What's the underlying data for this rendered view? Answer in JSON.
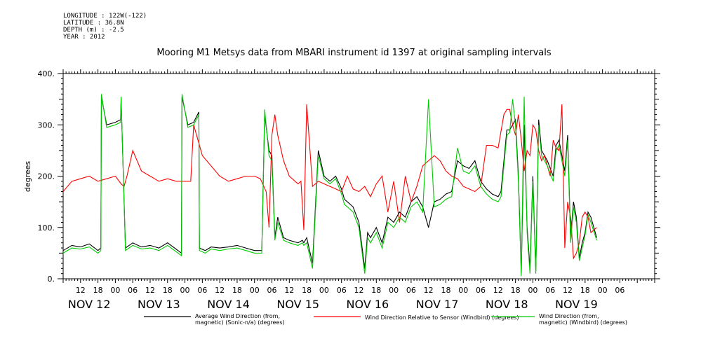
{
  "meta": {
    "longitude": "LONGITUDE : 122W(-122)",
    "latitude": "LATITUDE : 36.8N",
    "depth": "DEPTH (m) : -2.5",
    "year": "YEAR : 2012"
  },
  "chart_data": {
    "type": "line",
    "title": "Mooring M1 Metsys data from MBARI instrument id 1397 at original sampling intervals",
    "ylabel": "degrees",
    "xlabel": "",
    "ylim": [
      0,
      400
    ],
    "y_ticks": [
      0,
      100,
      200,
      300,
      400
    ],
    "y_tick_labels": [
      "0.",
      "100.",
      "200.",
      "300.",
      "400."
    ],
    "x_range_hours": [
      0,
      204
    ],
    "x_hour_ticks": [
      {
        "h": 6,
        "label": "12"
      },
      {
        "h": 12,
        "label": "18"
      },
      {
        "h": 18,
        "label": "00"
      },
      {
        "h": 24,
        "label": "06"
      },
      {
        "h": 30,
        "label": "12"
      },
      {
        "h": 36,
        "label": "18"
      },
      {
        "h": 42,
        "label": "00"
      },
      {
        "h": 48,
        "label": "06"
      },
      {
        "h": 54,
        "label": "12"
      },
      {
        "h": 60,
        "label": "18"
      },
      {
        "h": 66,
        "label": "00"
      },
      {
        "h": 72,
        "label": "06"
      },
      {
        "h": 78,
        "label": "12"
      },
      {
        "h": 84,
        "label": "18"
      },
      {
        "h": 90,
        "label": "00"
      },
      {
        "h": 96,
        "label": "06"
      },
      {
        "h": 102,
        "label": "12"
      },
      {
        "h": 108,
        "label": "18"
      },
      {
        "h": 114,
        "label": "00"
      },
      {
        "h": 120,
        "label": "06"
      },
      {
        "h": 126,
        "label": "12"
      },
      {
        "h": 132,
        "label": "18"
      },
      {
        "h": 138,
        "label": "00"
      },
      {
        "h": 144,
        "label": "06"
      },
      {
        "h": 150,
        "label": "12"
      },
      {
        "h": 156,
        "label": "18"
      },
      {
        "h": 162,
        "label": "00"
      },
      {
        "h": 168,
        "label": "06"
      },
      {
        "h": 174,
        "label": "12"
      },
      {
        "h": 180,
        "label": "18"
      },
      {
        "h": 186,
        "label": "00"
      },
      {
        "h": 192,
        "label": "06"
      }
    ],
    "x_day_labels": [
      {
        "h": 9,
        "label": "NOV 12"
      },
      {
        "h": 33,
        "label": "NOV 13"
      },
      {
        "h": 57,
        "label": "NOV 14"
      },
      {
        "h": 81,
        "label": "NOV 15"
      },
      {
        "h": 105,
        "label": "NOV 16"
      },
      {
        "h": 129,
        "label": "NOV 17"
      },
      {
        "h": 153,
        "label": "NOV 18"
      },
      {
        "h": 177,
        "label": "NOV 19"
      }
    ],
    "series": [
      {
        "name_line1": "Average Wind Direction (from,",
        "name_line2": "magnetic) (Sonic-n/a) (degrees)",
        "color": "#000000",
        "x": [
          0,
          3,
          6,
          9,
          12,
          13,
          13.2,
          15,
          18,
          19.8,
          20,
          21.5,
          24,
          27,
          30,
          33,
          36,
          40.8,
          41,
          43,
          45,
          46.8,
          47,
          49,
          51,
          54,
          57,
          60,
          63,
          66,
          68.5,
          69.5,
          71,
          72,
          73,
          74,
          76,
          78,
          81,
          82.5,
          83,
          84,
          86,
          88,
          90,
          92,
          94,
          96,
          97,
          98,
          100,
          102,
          104,
          105,
          106,
          108,
          110,
          112,
          114,
          116,
          118,
          120,
          122,
          124,
          126,
          128,
          130,
          132,
          134,
          136,
          138,
          140,
          142,
          144,
          146,
          148,
          150,
          151,
          153,
          154,
          155,
          156,
          157,
          158,
          159,
          160,
          161,
          162,
          163,
          164,
          165,
          166,
          167,
          168,
          169,
          170,
          171,
          172,
          173,
          174,
          175,
          176,
          177,
          178,
          179,
          180,
          181,
          182,
          184
        ],
        "y": [
          55,
          65,
          62,
          68,
          55,
          60,
          355,
          300,
          305,
          310,
          350,
          60,
          70,
          62,
          65,
          60,
          70,
          50,
          355,
          300,
          305,
          325,
          60,
          55,
          62,
          60,
          62,
          65,
          60,
          55,
          55,
          320,
          250,
          240,
          80,
          120,
          80,
          75,
          70,
          75,
          70,
          80,
          30,
          250,
          200,
          190,
          200,
          175,
          155,
          150,
          140,
          110,
          20,
          90,
          80,
          100,
          70,
          120,
          110,
          130,
          120,
          150,
          160,
          140,
          100,
          150,
          155,
          165,
          170,
          230,
          220,
          215,
          230,
          190,
          175,
          165,
          160,
          170,
          290,
          290,
          300,
          310,
          200,
          10,
          300,
          100,
          20,
          200,
          15,
          310,
          250,
          240,
          230,
          215,
          200,
          260,
          270,
          240,
          210,
          280,
          80,
          150,
          120,
          40,
          70,
          90,
          130,
          120,
          80
        ]
      },
      {
        "name_line1": "Wind Direction Relative to Sensor (Windbird) (degrees)",
        "name_line2": "",
        "color": "#ff0000",
        "x": [
          0,
          3,
          6,
          9,
          12,
          15,
          18,
          20,
          21,
          22,
          24,
          27,
          30,
          33,
          36,
          39,
          42,
          44,
          45,
          48,
          51,
          54,
          57,
          60,
          63,
          66,
          68,
          70,
          71,
          72,
          73,
          74,
          76,
          78,
          81,
          82,
          83,
          84,
          86,
          88,
          90,
          92,
          94,
          96,
          98,
          100,
          102,
          104,
          106,
          108,
          110,
          112,
          114,
          116,
          118,
          120,
          122,
          124,
          126,
          128,
          130,
          132,
          134,
          136,
          138,
          140,
          142,
          144,
          146,
          148,
          150,
          152,
          153,
          154,
          155,
          156,
          157,
          158,
          159,
          160,
          161,
          162,
          163,
          164,
          165,
          166,
          167,
          168,
          169,
          170,
          171,
          172,
          173,
          174,
          175,
          176,
          177,
          178,
          179,
          180,
          181,
          182,
          184
        ],
        "y": [
          170,
          190,
          195,
          200,
          190,
          195,
          200,
          185,
          180,
          200,
          250,
          210,
          200,
          190,
          195,
          190,
          190,
          190,
          300,
          240,
          220,
          200,
          190,
          195,
          200,
          200,
          195,
          170,
          100,
          280,
          320,
          280,
          230,
          200,
          185,
          190,
          95,
          340,
          180,
          190,
          185,
          180,
          175,
          170,
          200,
          175,
          170,
          180,
          160,
          185,
          200,
          130,
          190,
          110,
          200,
          150,
          180,
          220,
          230,
          240,
          230,
          210,
          200,
          195,
          180,
          175,
          170,
          180,
          260,
          260,
          255,
          320,
          330,
          330,
          300,
          280,
          320,
          270,
          210,
          250,
          240,
          300,
          290,
          250,
          230,
          240,
          220,
          200,
          270,
          255,
          250,
          340,
          60,
          150,
          120,
          40,
          50,
          70,
          120,
          130,
          120,
          90,
          100
        ]
      },
      {
        "name_line1": "Wind Direction (from,",
        "name_line2": "magnetic) (Windbird) (degrees)",
        "color": "#00cc00",
        "x": [
          0,
          3,
          6,
          9,
          12,
          13,
          13.2,
          15,
          18,
          19.8,
          20,
          21.5,
          24,
          27,
          30,
          33,
          36,
          40.8,
          41,
          43,
          45,
          46.8,
          47,
          49,
          51,
          54,
          57,
          60,
          63,
          66,
          68.5,
          69.5,
          71,
          72,
          73,
          74,
          76,
          78,
          81,
          82.5,
          83,
          84,
          86,
          88,
          90,
          92,
          94,
          96,
          97,
          98,
          100,
          102,
          104,
          105,
          106,
          108,
          110,
          112,
          114,
          116,
          118,
          120,
          122,
          124,
          126,
          128,
          130,
          132,
          134,
          136,
          138,
          140,
          142,
          144,
          146,
          148,
          150,
          151,
          153,
          154,
          155,
          156,
          157,
          158,
          159,
          160,
          161,
          162,
          163,
          164,
          165,
          166,
          167,
          168,
          169,
          170,
          171,
          172,
          173,
          174,
          175,
          176,
          177,
          178,
          179,
          180,
          181,
          182,
          184
        ],
        "y": [
          50,
          60,
          58,
          62,
          50,
          55,
          360,
          295,
          300,
          305,
          355,
          55,
          65,
          58,
          60,
          55,
          65,
          45,
          360,
          295,
          300,
          320,
          55,
          50,
          58,
          55,
          58,
          60,
          55,
          50,
          50,
          330,
          240,
          230,
          75,
          110,
          75,
          70,
          65,
          70,
          65,
          70,
          20,
          240,
          195,
          185,
          195,
          165,
          145,
          140,
          130,
          100,
          10,
          80,
          70,
          90,
          60,
          110,
          100,
          120,
          110,
          140,
          150,
          130,
          350,
          140,
          145,
          155,
          160,
          255,
          210,
          205,
          220,
          180,
          165,
          155,
          150,
          160,
          280,
          285,
          350,
          300,
          190,
          5,
          355,
          90,
          10,
          190,
          10,
          300,
          240,
          230,
          220,
          205,
          190,
          250,
          260,
          230,
          200,
          270,
          70,
          140,
          110,
          35,
          60,
          85,
          125,
          110,
          75
        ]
      }
    ]
  }
}
